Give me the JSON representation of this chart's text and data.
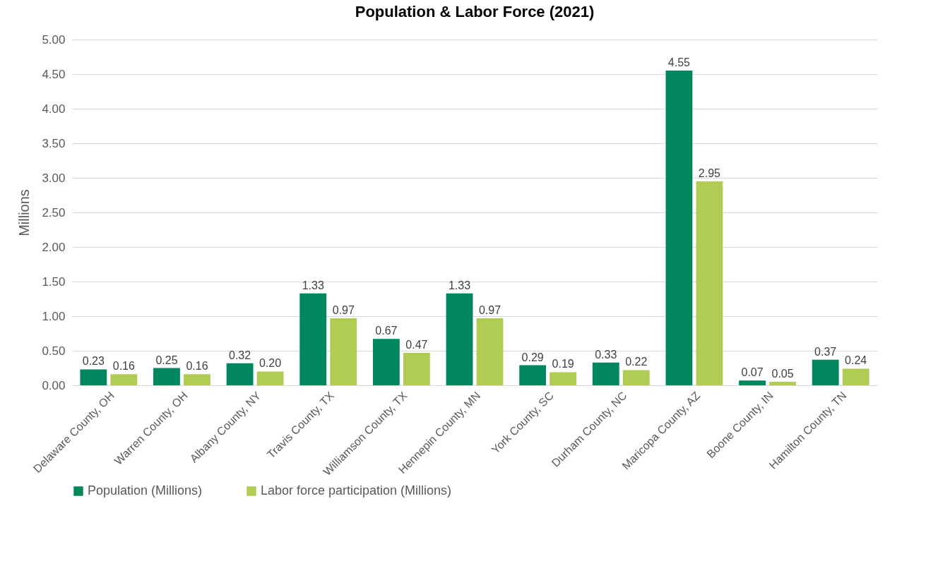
{
  "chart_data": {
    "type": "bar",
    "title": "Population & Labor Force (2021)",
    "ylabel": "Millions",
    "categories": [
      "Delaware County, OH",
      "Warren County, OH",
      "Albany County, NY",
      "Travis County, TX",
      "Williamson County, TX",
      "Hennepin County, MN",
      "York County, SC",
      "Durham County, NC",
      "Maricopa County, AZ",
      "Boone County, IN",
      "Hamilton County, TN"
    ],
    "series": [
      {
        "name": "Population (Millions)",
        "color": "#00875f",
        "values": [
          0.23,
          0.25,
          0.32,
          1.33,
          0.67,
          1.33,
          0.29,
          0.33,
          4.55,
          0.07,
          0.37
        ],
        "value_labels": [
          "0.23",
          "0.25",
          "0.32",
          "1.33",
          "0.67",
          "1.33",
          "0.29",
          "0.33",
          "4.55",
          "0.07",
          "0.37"
        ]
      },
      {
        "name": "Labor force participation (Millions)",
        "color": "#b0cc52",
        "values": [
          0.16,
          0.16,
          0.2,
          0.97,
          0.47,
          0.97,
          0.19,
          0.22,
          2.95,
          0.05,
          0.24
        ],
        "value_labels": [
          "0.16",
          "0.16",
          "0.20",
          "0.97",
          "0.47",
          "0.97",
          "0.19",
          "0.22",
          "2.95",
          "0.05",
          "0.24"
        ]
      }
    ],
    "ylim": [
      0,
      5
    ],
    "yticks": [
      {
        "value": 0,
        "label": "0.00"
      },
      {
        "value": 0.5,
        "label": "0.50"
      },
      {
        "value": 1,
        "label": "1.00"
      },
      {
        "value": 1.5,
        "label": "1.50"
      },
      {
        "value": 2,
        "label": "2.00"
      },
      {
        "value": 2.5,
        "label": "2.50"
      },
      {
        "value": 3,
        "label": "3.00"
      },
      {
        "value": 3.5,
        "label": "3.50"
      },
      {
        "value": 4,
        "label": "4.00"
      },
      {
        "value": 4.5,
        "label": "4.50"
      },
      {
        "value": 5,
        "label": "5.00"
      }
    ],
    "grid": "y",
    "legend": "bottom"
  }
}
